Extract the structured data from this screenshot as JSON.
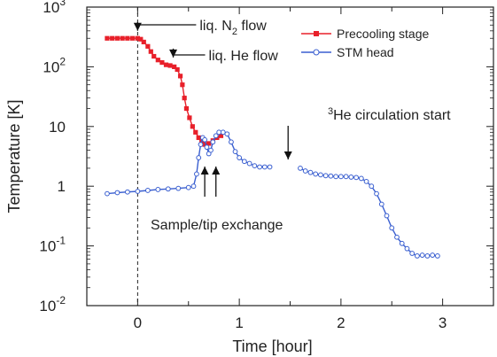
{
  "chart_data": {
    "type": "scatter",
    "title": "",
    "xlabel": "Time [hour]",
    "ylabel": "Temperature [K]",
    "xlim": [
      -0.5,
      3.5
    ],
    "ylim": [
      0.01,
      1000
    ],
    "y_scale": "log",
    "x_ticks": [
      "0",
      "1",
      "2",
      "3"
    ],
    "x_tick_values": [
      0,
      1,
      2,
      3
    ],
    "y_ticks": [
      {
        "value": 1000,
        "base": "10",
        "exp": "3"
      },
      {
        "value": 100,
        "base": "10",
        "exp": "2"
      },
      {
        "value": 10,
        "base": "10",
        "exp": ""
      },
      {
        "value": 1,
        "base": "1",
        "exp": ""
      },
      {
        "value": 0.1,
        "base": "10",
        "exp": "-1"
      },
      {
        "value": 0.01,
        "base": "10",
        "exp": "-2"
      }
    ],
    "legend_position": "top-right",
    "series": [
      {
        "name": "Precooling stage",
        "color": "#e8202a",
        "marker": "filled-square",
        "points": [
          [
            -0.3,
            300
          ],
          [
            -0.25,
            300
          ],
          [
            -0.2,
            300
          ],
          [
            -0.15,
            300
          ],
          [
            -0.1,
            300
          ],
          [
            -0.05,
            300
          ],
          [
            0.0,
            300
          ],
          [
            0.03,
            290
          ],
          [
            0.06,
            260
          ],
          [
            0.1,
            220
          ],
          [
            0.13,
            180
          ],
          [
            0.16,
            150
          ],
          [
            0.2,
            130
          ],
          [
            0.24,
            118
          ],
          [
            0.28,
            108
          ],
          [
            0.32,
            105
          ],
          [
            0.36,
            100
          ],
          [
            0.39,
            90
          ],
          [
            0.42,
            70
          ],
          [
            0.44,
            50
          ],
          [
            0.46,
            30
          ],
          [
            0.48,
            20
          ],
          [
            0.51,
            14
          ],
          [
            0.54,
            10
          ],
          [
            0.57,
            8
          ],
          [
            0.6,
            6.5
          ],
          [
            0.63,
            5.5
          ],
          [
            0.66,
            5
          ],
          [
            0.7,
            5.2
          ],
          [
            0.74,
            5.8
          ],
          [
            0.78,
            6.5
          ],
          [
            0.82,
            7
          ]
        ]
      },
      {
        "name": "STM head",
        "color": "#3a5fd0",
        "marker": "open-circle",
        "points": [
          [
            -0.3,
            0.75
          ],
          [
            -0.2,
            0.78
          ],
          [
            -0.1,
            0.8
          ],
          [
            0.0,
            0.82
          ],
          [
            0.1,
            0.85
          ],
          [
            0.2,
            0.88
          ],
          [
            0.3,
            0.9
          ],
          [
            0.4,
            0.92
          ],
          [
            0.5,
            0.95
          ],
          [
            0.55,
            1.0
          ],
          [
            0.58,
            1.6
          ],
          [
            0.6,
            3.0
          ],
          [
            0.62,
            5.0
          ],
          [
            0.64,
            6.5
          ],
          [
            0.66,
            6.0
          ],
          [
            0.68,
            4.5
          ],
          [
            0.7,
            3.5
          ],
          [
            0.72,
            4.0
          ],
          [
            0.74,
            5.5
          ],
          [
            0.77,
            7.0
          ],
          [
            0.8,
            8.0
          ],
          [
            0.84,
            8.0
          ],
          [
            0.88,
            7.5
          ],
          [
            0.92,
            5.5
          ],
          [
            0.96,
            3.8
          ],
          [
            1.0,
            3.0
          ],
          [
            1.05,
            2.6
          ],
          [
            1.1,
            2.4
          ],
          [
            1.15,
            2.2
          ],
          [
            1.2,
            2.1
          ],
          [
            1.25,
            2.1
          ],
          [
            1.3,
            2.1
          ],
          [
            1.6,
            2.0
          ],
          [
            1.65,
            1.8
          ],
          [
            1.7,
            1.7
          ],
          [
            1.75,
            1.6
          ],
          [
            1.8,
            1.55
          ],
          [
            1.85,
            1.5
          ],
          [
            1.9,
            1.48
          ],
          [
            1.95,
            1.45
          ],
          [
            2.0,
            1.45
          ],
          [
            2.05,
            1.45
          ],
          [
            2.1,
            1.42
          ],
          [
            2.15,
            1.4
          ],
          [
            2.2,
            1.35
          ],
          [
            2.25,
            1.2
          ],
          [
            2.3,
            1.0
          ],
          [
            2.35,
            0.75
          ],
          [
            2.4,
            0.5
          ],
          [
            2.45,
            0.32
          ],
          [
            2.5,
            0.2
          ],
          [
            2.55,
            0.14
          ],
          [
            2.6,
            0.11
          ],
          [
            2.65,
            0.09
          ],
          [
            2.7,
            0.075
          ],
          [
            2.75,
            0.068
          ],
          [
            2.8,
            0.07
          ],
          [
            2.85,
            0.068
          ],
          [
            2.9,
            0.07
          ],
          [
            2.95,
            0.068
          ]
        ]
      }
    ],
    "annotations": [
      {
        "id": "n2",
        "text": "liq. N",
        "sub": "2",
        "tail": " flow",
        "arrow_from": [
          0.0,
          700
        ],
        "arrow_to": [
          0.0,
          350
        ]
      },
      {
        "id": "he",
        "text": "liq. He flow",
        "arrow_from": [
          0.35,
          250
        ],
        "arrow_to": [
          0.35,
          125
        ]
      },
      {
        "id": "he3",
        "sup": "3",
        "text": "He circulation start",
        "arrow_from": [
          1.48,
          7
        ],
        "arrow_to": [
          1.48,
          2.6
        ]
      },
      {
        "id": "exchange",
        "text": "Sample/tip exchange"
      }
    ],
    "vertical_dashed_line_x": 0
  }
}
